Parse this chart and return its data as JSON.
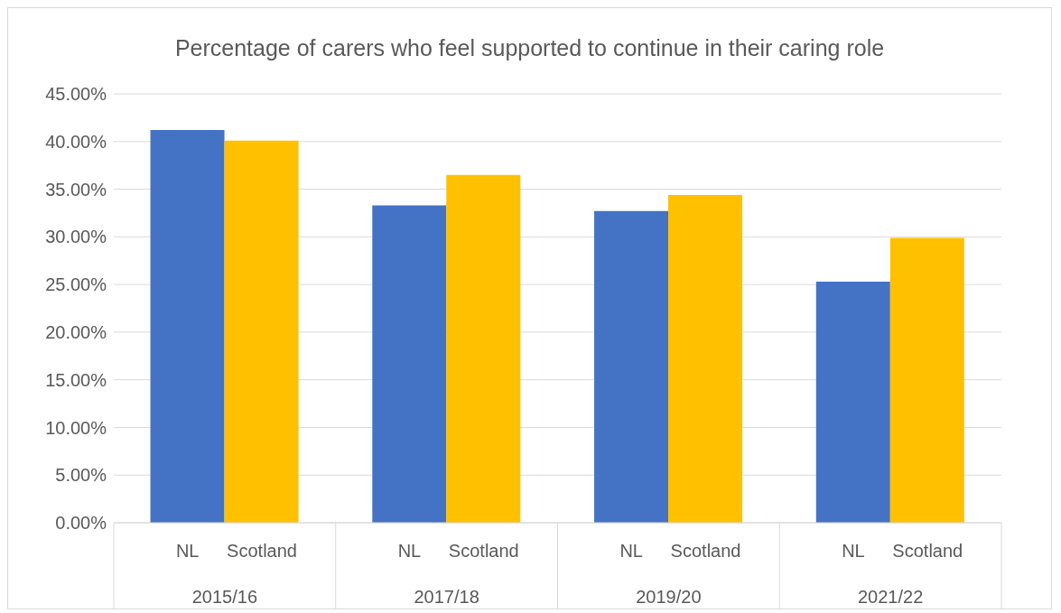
{
  "chart_data": {
    "type": "bar",
    "title": "Percentage of carers who feel supported to continue in their caring role",
    "categories": [
      "2015/16",
      "2017/18",
      "2019/20",
      "2021/22"
    ],
    "series": [
      {
        "name": "NL",
        "color": "#4472c4",
        "values": [
          41.2,
          33.3,
          32.7,
          25.3
        ]
      },
      {
        "name": "Scotland",
        "color": "#ffc000",
        "values": [
          40.1,
          36.5,
          34.4,
          29.9
        ]
      }
    ],
    "ylim": [
      0,
      45
    ],
    "yticks": [
      {
        "value": 0,
        "label": "0.00%"
      },
      {
        "value": 5,
        "label": "5.00%"
      },
      {
        "value": 10,
        "label": "10.00%"
      },
      {
        "value": 15,
        "label": "15.00%"
      },
      {
        "value": 20,
        "label": "20.00%"
      },
      {
        "value": 25,
        "label": "25.00%"
      },
      {
        "value": 30,
        "label": "30.00%"
      },
      {
        "value": 35,
        "label": "35.00%"
      },
      {
        "value": 40,
        "label": "40.00%"
      },
      {
        "value": 45,
        "label": "45.00%"
      }
    ],
    "grid": "y"
  }
}
